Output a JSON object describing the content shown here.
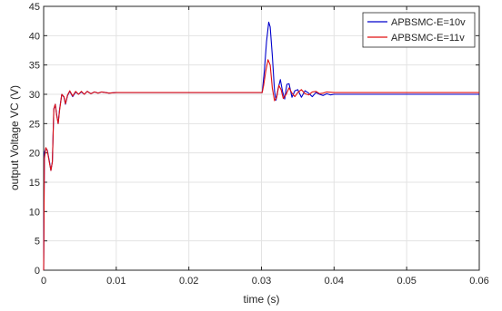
{
  "chart_data": {
    "type": "line",
    "xlabel": "time (s)",
    "ylabel": "output Voltage VC (V)",
    "xlim": [
      0,
      0.06
    ],
    "ylim": [
      0,
      45
    ],
    "xticks": [
      0,
      0.01,
      0.02,
      0.03,
      0.04,
      0.05,
      0.06
    ],
    "xtick_labels": [
      "0",
      "0.01",
      "0.02",
      "0.03",
      "0.04",
      "0.05",
      "0.06"
    ],
    "yticks": [
      0,
      5,
      10,
      15,
      20,
      25,
      30,
      35,
      40,
      45
    ],
    "ytick_labels": [
      "0",
      "5",
      "10",
      "15",
      "20",
      "25",
      "30",
      "35",
      "40",
      "45"
    ],
    "grid": true,
    "legend_position": "top-right",
    "series": [
      {
        "name": "APBSMC-E=10v",
        "color": "#0000cc",
        "points": [
          [
            0,
            0
          ],
          [
            0.0001,
            20.0
          ],
          [
            0.0003,
            20.8
          ],
          [
            0.0005,
            20.5
          ],
          [
            0.0008,
            18.5
          ],
          [
            0.001,
            17.0
          ],
          [
            0.0012,
            18.5
          ],
          [
            0.0014,
            27.5
          ],
          [
            0.0016,
            28.3
          ],
          [
            0.0018,
            26.5
          ],
          [
            0.002,
            25.0
          ],
          [
            0.0022,
            27.5
          ],
          [
            0.0025,
            30.0
          ],
          [
            0.0028,
            29.5
          ],
          [
            0.003,
            28.3
          ],
          [
            0.0033,
            29.8
          ],
          [
            0.0036,
            30.5
          ],
          [
            0.004,
            29.6
          ],
          [
            0.0044,
            30.4
          ],
          [
            0.0048,
            30.0
          ],
          [
            0.0052,
            30.4
          ],
          [
            0.0056,
            30.0
          ],
          [
            0.006,
            30.5
          ],
          [
            0.0065,
            30.1
          ],
          [
            0.007,
            30.4
          ],
          [
            0.0075,
            30.2
          ],
          [
            0.008,
            30.4
          ],
          [
            0.009,
            30.2
          ],
          [
            0.01,
            30.3
          ],
          [
            0.015,
            30.3
          ],
          [
            0.02,
            30.3
          ],
          [
            0.025,
            30.3
          ],
          [
            0.0301,
            30.3
          ],
          [
            0.0304,
            34.0
          ],
          [
            0.0307,
            39.0
          ],
          [
            0.031,
            42.3
          ],
          [
            0.0312,
            41.5
          ],
          [
            0.0315,
            36.5
          ],
          [
            0.0318,
            30.5
          ],
          [
            0.032,
            29.0
          ],
          [
            0.0323,
            31.0
          ],
          [
            0.0326,
            32.5
          ],
          [
            0.0329,
            30.5
          ],
          [
            0.0332,
            29.2
          ],
          [
            0.0335,
            31.7
          ],
          [
            0.0338,
            31.8
          ],
          [
            0.0342,
            29.5
          ],
          [
            0.0346,
            30.6
          ],
          [
            0.035,
            30.8
          ],
          [
            0.0355,
            29.5
          ],
          [
            0.036,
            30.6
          ],
          [
            0.0365,
            30.2
          ],
          [
            0.037,
            29.6
          ],
          [
            0.0375,
            30.3
          ],
          [
            0.038,
            30.0
          ],
          [
            0.0385,
            29.8
          ],
          [
            0.039,
            30.1
          ],
          [
            0.0395,
            29.9
          ],
          [
            0.04,
            30.0
          ],
          [
            0.045,
            30.0
          ],
          [
            0.05,
            30.0
          ],
          [
            0.055,
            30.0
          ],
          [
            0.06,
            30.0
          ]
        ]
      },
      {
        "name": "APBSMC-E=11v",
        "color": "#e01010",
        "points": [
          [
            0,
            0
          ],
          [
            0.0001,
            19.0
          ],
          [
            0.0003,
            20.9
          ],
          [
            0.0005,
            20.4
          ],
          [
            0.0008,
            18.3
          ],
          [
            0.001,
            17.0
          ],
          [
            0.0012,
            18.5
          ],
          [
            0.0014,
            27.5
          ],
          [
            0.0016,
            28.3
          ],
          [
            0.0018,
            26.3
          ],
          [
            0.002,
            25.0
          ],
          [
            0.0022,
            27.3
          ],
          [
            0.0025,
            30.0
          ],
          [
            0.0028,
            29.6
          ],
          [
            0.003,
            28.4
          ],
          [
            0.0033,
            29.9
          ],
          [
            0.0036,
            30.6
          ],
          [
            0.004,
            29.7
          ],
          [
            0.0044,
            30.5
          ],
          [
            0.0048,
            30.0
          ],
          [
            0.0052,
            30.5
          ],
          [
            0.0056,
            30.0
          ],
          [
            0.006,
            30.5
          ],
          [
            0.0065,
            30.1
          ],
          [
            0.007,
            30.4
          ],
          [
            0.0075,
            30.2
          ],
          [
            0.008,
            30.4
          ],
          [
            0.009,
            30.2
          ],
          [
            0.01,
            30.3
          ],
          [
            0.015,
            30.3
          ],
          [
            0.02,
            30.3
          ],
          [
            0.025,
            30.3
          ],
          [
            0.0301,
            30.3
          ],
          [
            0.0303,
            31.5
          ],
          [
            0.0306,
            34.0
          ],
          [
            0.0309,
            35.9
          ],
          [
            0.0312,
            35.0
          ],
          [
            0.0315,
            31.0
          ],
          [
            0.0318,
            28.9
          ],
          [
            0.0321,
            29.5
          ],
          [
            0.0324,
            31.5
          ],
          [
            0.0327,
            30.8
          ],
          [
            0.033,
            29.3
          ],
          [
            0.0334,
            30.0
          ],
          [
            0.0338,
            31.1
          ],
          [
            0.0342,
            30.2
          ],
          [
            0.0346,
            29.6
          ],
          [
            0.035,
            30.3
          ],
          [
            0.0355,
            30.8
          ],
          [
            0.036,
            30.1
          ],
          [
            0.0365,
            29.9
          ],
          [
            0.037,
            30.4
          ],
          [
            0.0375,
            30.5
          ],
          [
            0.038,
            30.1
          ],
          [
            0.0385,
            30.2
          ],
          [
            0.039,
            30.4
          ],
          [
            0.04,
            30.3
          ],
          [
            0.045,
            30.3
          ],
          [
            0.05,
            30.3
          ],
          [
            0.055,
            30.3
          ],
          [
            0.06,
            30.3
          ]
        ]
      }
    ]
  }
}
